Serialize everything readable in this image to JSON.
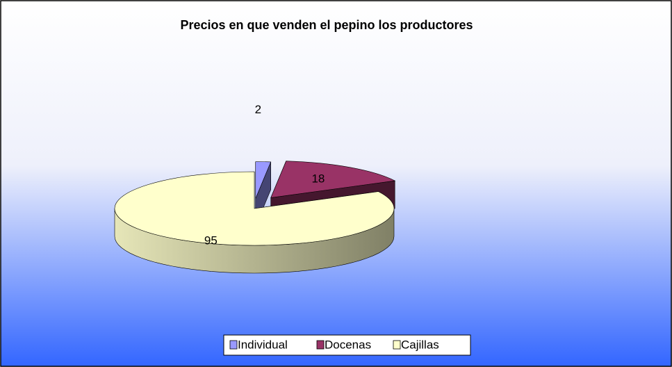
{
  "chart_data": {
    "type": "pie3d",
    "title": "Precios en que venden el pepino los productores",
    "categories": [
      "Individual",
      "Docenas",
      "Cajillas"
    ],
    "values": [
      2,
      18,
      95
    ],
    "colors": [
      "#9999ff",
      "#993366",
      "#ffffcc"
    ],
    "legend": "bottom"
  }
}
